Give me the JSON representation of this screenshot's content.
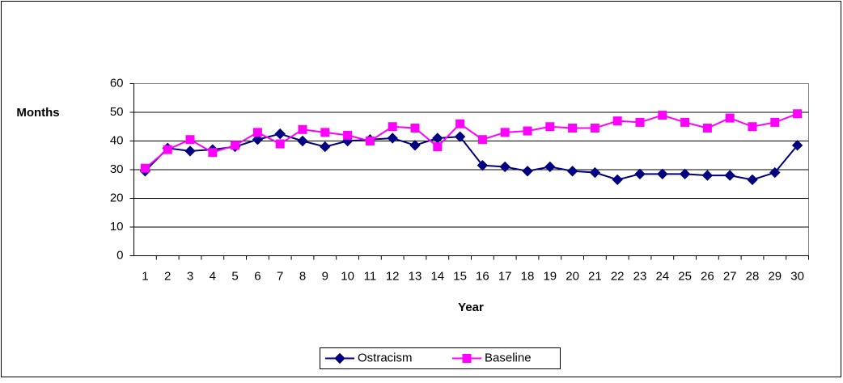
{
  "chart_data": {
    "type": "line",
    "y_label": "Months",
    "x_label": "Year",
    "categories": [
      1,
      2,
      3,
      4,
      5,
      6,
      7,
      8,
      9,
      10,
      11,
      12,
      13,
      14,
      15,
      16,
      17,
      18,
      19,
      20,
      21,
      22,
      23,
      24,
      25,
      26,
      27,
      28,
      29,
      30
    ],
    "series": [
      {
        "name": "Ostracism",
        "color": "#000080",
        "marker": "diamond",
        "values": [
          29.5,
          37.5,
          36.5,
          37,
          38,
          40.5,
          42.5,
          40,
          38,
          40,
          40.5,
          41,
          38.5,
          41,
          41.5,
          31.5,
          31,
          29.5,
          31,
          29.5,
          29,
          26.5,
          28.5,
          28.5,
          28.5,
          28,
          28,
          26.5,
          29,
          38.5
        ]
      },
      {
        "name": "Baseline",
        "color": "#ff00ff",
        "marker": "square",
        "values": [
          30.5,
          37,
          40.5,
          36,
          38.5,
          43,
          39,
          44,
          43,
          42,
          40,
          45,
          44.5,
          38,
          46,
          40.5,
          43,
          43.5,
          45,
          44.5,
          44.5,
          47,
          46.5,
          49,
          46.5,
          44.5,
          48,
          45,
          46.5,
          49.5
        ]
      }
    ],
    "ylim": [
      0,
      60
    ],
    "yticks": [
      0,
      10,
      20,
      30,
      40,
      50,
      60
    ],
    "grid": true,
    "legend": "bottom"
  }
}
